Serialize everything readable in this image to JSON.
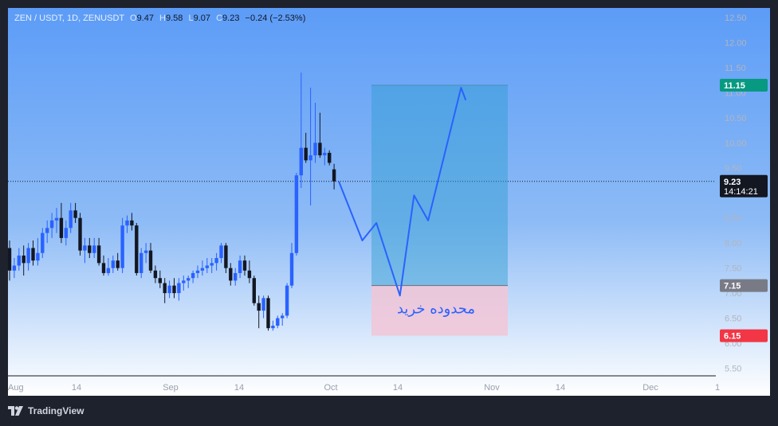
{
  "legend": {
    "symbol": "ZEN / USDT, 1D, ZENUSDT",
    "open_key": "O",
    "open": "9.47",
    "high_key": "H",
    "high": "9.58",
    "low_key": "L",
    "low": "9.07",
    "close_key": "C",
    "close": "9.23",
    "change": "−0.24 (−2.53%)"
  },
  "footer": {
    "brand": "TradingView"
  },
  "colors": {
    "up": "#2962ff",
    "down": "#131722",
    "target_zone": "#2f9ed0",
    "buy_zone": "#f2c6d6",
    "projection": "#2962ff",
    "target_badge": "#089981",
    "stop_badge": "#f23645",
    "entry_badge": "#787b86",
    "price_badge": "#131722"
  },
  "chart_data": {
    "type": "candlestick",
    "symbol": "ZENUSDT",
    "interval": "1D",
    "yaxis": {
      "ylim": [
        5.3,
        12.7
      ],
      "ticks": [
        "12.50",
        "12.00",
        "11.50",
        "11.00",
        "10.50",
        "10.00",
        "9.50",
        "9.00",
        "8.50",
        "8.00",
        "7.50",
        "7.00",
        "6.50",
        "6.00",
        "5.50"
      ]
    },
    "xaxis": {
      "ticks": [
        "Aug",
        "14",
        "Sep",
        "14",
        "Oct",
        "14",
        "Nov",
        "14",
        "Dec",
        "1"
      ]
    },
    "candles": [
      {
        "o": 7.9,
        "h": 8.05,
        "l": 7.25,
        "c": 7.45
      },
      {
        "o": 7.45,
        "h": 7.7,
        "l": 7.3,
        "c": 7.55
      },
      {
        "o": 7.55,
        "h": 7.9,
        "l": 7.45,
        "c": 7.75
      },
      {
        "o": 7.75,
        "h": 7.95,
        "l": 7.35,
        "c": 7.6
      },
      {
        "o": 7.6,
        "h": 8.0,
        "l": 7.45,
        "c": 7.9
      },
      {
        "o": 7.9,
        "h": 8.05,
        "l": 7.55,
        "c": 7.65
      },
      {
        "o": 7.65,
        "h": 8.1,
        "l": 7.55,
        "c": 7.8
      },
      {
        "o": 7.8,
        "h": 8.3,
        "l": 7.7,
        "c": 8.2
      },
      {
        "o": 8.2,
        "h": 8.45,
        "l": 8.0,
        "c": 8.3
      },
      {
        "o": 8.3,
        "h": 8.6,
        "l": 8.1,
        "c": 8.45
      },
      {
        "o": 8.45,
        "h": 8.7,
        "l": 8.2,
        "c": 8.5
      },
      {
        "o": 8.5,
        "h": 8.8,
        "l": 8.0,
        "c": 8.1
      },
      {
        "o": 8.1,
        "h": 8.45,
        "l": 7.95,
        "c": 8.3
      },
      {
        "o": 8.3,
        "h": 8.8,
        "l": 8.2,
        "c": 8.65
      },
      {
        "o": 8.65,
        "h": 8.8,
        "l": 8.4,
        "c": 8.5
      },
      {
        "o": 8.5,
        "h": 8.6,
        "l": 7.75,
        "c": 7.85
      },
      {
        "o": 7.85,
        "h": 8.1,
        "l": 7.6,
        "c": 7.95
      },
      {
        "o": 7.95,
        "h": 8.1,
        "l": 7.7,
        "c": 7.8
      },
      {
        "o": 7.8,
        "h": 8.1,
        "l": 7.7,
        "c": 7.95
      },
      {
        "o": 7.95,
        "h": 8.1,
        "l": 7.55,
        "c": 7.6
      },
      {
        "o": 7.6,
        "h": 7.75,
        "l": 7.35,
        "c": 7.4
      },
      {
        "o": 7.4,
        "h": 7.7,
        "l": 7.35,
        "c": 7.5
      },
      {
        "o": 7.5,
        "h": 7.75,
        "l": 7.4,
        "c": 7.65
      },
      {
        "o": 7.65,
        "h": 7.8,
        "l": 7.45,
        "c": 7.5
      },
      {
        "o": 7.5,
        "h": 8.5,
        "l": 7.4,
        "c": 8.35
      },
      {
        "o": 8.35,
        "h": 8.55,
        "l": 8.2,
        "c": 8.45
      },
      {
        "o": 8.45,
        "h": 8.6,
        "l": 8.25,
        "c": 8.35
      },
      {
        "o": 8.35,
        "h": 8.4,
        "l": 7.35,
        "c": 7.4
      },
      {
        "o": 7.4,
        "h": 7.9,
        "l": 7.3,
        "c": 7.8
      },
      {
        "o": 7.8,
        "h": 8.0,
        "l": 7.6,
        "c": 7.85
      },
      {
        "o": 7.85,
        "h": 8.0,
        "l": 7.4,
        "c": 7.45
      },
      {
        "o": 7.45,
        "h": 7.55,
        "l": 7.2,
        "c": 7.3
      },
      {
        "o": 7.3,
        "h": 7.45,
        "l": 7.1,
        "c": 7.2
      },
      {
        "o": 7.2,
        "h": 7.3,
        "l": 6.8,
        "c": 7.0
      },
      {
        "o": 7.0,
        "h": 7.25,
        "l": 6.9,
        "c": 7.15
      },
      {
        "o": 7.15,
        "h": 7.3,
        "l": 6.9,
        "c": 7.0
      },
      {
        "o": 7.0,
        "h": 7.3,
        "l": 6.85,
        "c": 7.2
      },
      {
        "o": 7.2,
        "h": 7.35,
        "l": 7.05,
        "c": 7.25
      },
      {
        "o": 7.25,
        "h": 7.35,
        "l": 7.1,
        "c": 7.3
      },
      {
        "o": 7.3,
        "h": 7.45,
        "l": 7.2,
        "c": 7.4
      },
      {
        "o": 7.4,
        "h": 7.55,
        "l": 7.3,
        "c": 7.45
      },
      {
        "o": 7.45,
        "h": 7.65,
        "l": 7.35,
        "c": 7.5
      },
      {
        "o": 7.5,
        "h": 7.7,
        "l": 7.4,
        "c": 7.55
      },
      {
        "o": 7.55,
        "h": 7.7,
        "l": 7.4,
        "c": 7.6
      },
      {
        "o": 7.6,
        "h": 7.8,
        "l": 7.45,
        "c": 7.7
      },
      {
        "o": 7.7,
        "h": 8.0,
        "l": 7.6,
        "c": 7.95
      },
      {
        "o": 7.95,
        "h": 8.0,
        "l": 7.4,
        "c": 7.5
      },
      {
        "o": 7.5,
        "h": 7.6,
        "l": 7.15,
        "c": 7.25
      },
      {
        "o": 7.25,
        "h": 7.5,
        "l": 7.15,
        "c": 7.4
      },
      {
        "o": 7.4,
        "h": 7.75,
        "l": 7.3,
        "c": 7.65
      },
      {
        "o": 7.65,
        "h": 7.75,
        "l": 7.35,
        "c": 7.45
      },
      {
        "o": 7.45,
        "h": 7.65,
        "l": 7.2,
        "c": 7.3
      },
      {
        "o": 7.3,
        "h": 7.35,
        "l": 6.75,
        "c": 6.8
      },
      {
        "o": 6.8,
        "h": 6.95,
        "l": 6.3,
        "c": 6.65
      },
      {
        "o": 6.65,
        "h": 6.95,
        "l": 6.5,
        "c": 6.9
      },
      {
        "o": 6.9,
        "h": 6.95,
        "l": 6.25,
        "c": 6.3
      },
      {
        "o": 6.3,
        "h": 6.45,
        "l": 6.25,
        "c": 6.35
      },
      {
        "o": 6.35,
        "h": 6.55,
        "l": 6.3,
        "c": 6.5
      },
      {
        "o": 6.5,
        "h": 6.6,
        "l": 6.35,
        "c": 6.55
      },
      {
        "o": 6.55,
        "h": 7.2,
        "l": 6.5,
        "c": 7.15
      },
      {
        "o": 7.15,
        "h": 8.0,
        "l": 7.1,
        "c": 7.8
      },
      {
        "o": 7.8,
        "h": 9.4,
        "l": 7.75,
        "c": 9.35
      },
      {
        "o": 9.35,
        "h": 11.4,
        "l": 9.1,
        "c": 9.9
      },
      {
        "o": 9.9,
        "h": 10.2,
        "l": 9.6,
        "c": 9.65
      },
      {
        "o": 9.65,
        "h": 11.1,
        "l": 8.75,
        "c": 9.75
      },
      {
        "o": 9.75,
        "h": 10.8,
        "l": 9.6,
        "c": 10.0
      },
      {
        "o": 10.0,
        "h": 10.6,
        "l": 9.7,
        "c": 9.75
      },
      {
        "o": 9.75,
        "h": 9.9,
        "l": 9.55,
        "c": 9.8
      },
      {
        "o": 9.8,
        "h": 9.85,
        "l": 9.55,
        "c": 9.6
      },
      {
        "o": 9.47,
        "h": 9.58,
        "l": 9.07,
        "c": 9.23
      }
    ],
    "current_price": 9.23,
    "countdown": "14:14:21",
    "position": {
      "target": 11.15,
      "entry": 7.15,
      "stop": 6.15
    },
    "projection": [
      {
        "i": 70,
        "v": 9.23
      },
      {
        "i": 75,
        "v": 8.05
      },
      {
        "i": 78,
        "v": 8.4
      },
      {
        "i": 83,
        "v": 6.95
      },
      {
        "i": 86,
        "v": 8.95
      },
      {
        "i": 89,
        "v": 8.45
      },
      {
        "i": 96,
        "v": 11.1
      },
      {
        "i": 97,
        "v": 10.85
      }
    ],
    "annotation": "محدوده خرید",
    "badges": [
      "11.15",
      "9.23",
      "7.15",
      "6.15"
    ]
  }
}
